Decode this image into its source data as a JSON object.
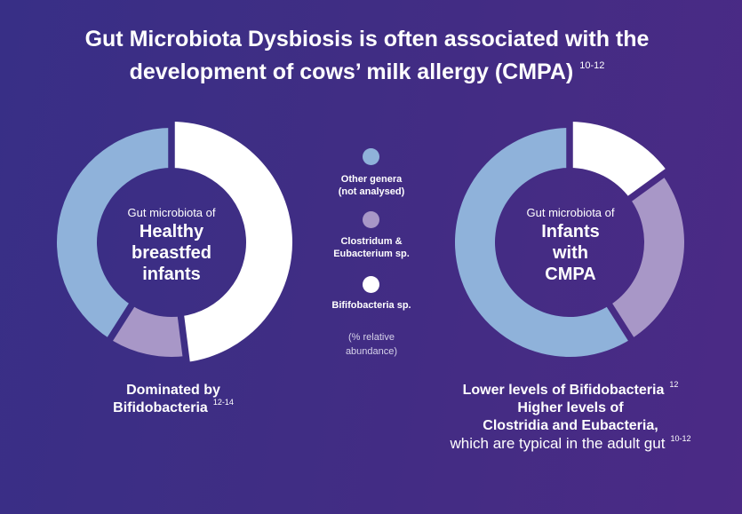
{
  "title": {
    "line1": "Gut Microbiota Dysbiosis is often associated with the",
    "line2": "development of cows’ milk allergy (CMPA)",
    "line2_ref": "10-12"
  },
  "donut_left": {
    "label_small": "Gut microbiota of",
    "label_lines": [
      "Healthy",
      "breastfed",
      "infants"
    ]
  },
  "donut_right": {
    "label_small": "Gut microbiota of",
    "label_lines": [
      "Infants",
      "with",
      "CMPA"
    ]
  },
  "legend": {
    "items": [
      {
        "lines": [
          "Other genera",
          "(not analysed)"
        ],
        "color": "#8fb2da"
      },
      {
        "lines": [
          "Clostridum &",
          "Eubacterium sp."
        ],
        "color": "#a897c7"
      },
      {
        "lines": [
          "Bififobacteria sp."
        ],
        "color": "#ffffff"
      }
    ],
    "note_lines": [
      "(% relative",
      "abundance)"
    ]
  },
  "caption_left": {
    "line1": "Dominated by",
    "line2": "Bifidobacteria",
    "line2_ref": "12-14"
  },
  "caption_right": {
    "line1": "Lower levels of Bifidobacteria",
    "line1_ref": "12",
    "line2": "Higher levels of",
    "line3": "Clostridia and Eubacteria,",
    "line4": "which are typical in the adult gut",
    "line4_ref": "10-12"
  },
  "colors": {
    "background_start": "#382f86",
    "background_end": "#4b2a85",
    "text": "#ffffff",
    "bifidobacteria": "#ffffff",
    "clostridium_eubacterium": "#a897c7",
    "other_genera": "#8fb2da"
  },
  "chart_data": [
    {
      "type": "pie",
      "variant": "donut",
      "title": "Gut microbiota of Healthy breastfed infants",
      "categories": [
        "Bififobacteria sp.",
        "Clostridum & Eubacterium sp.",
        "Other genera (not analysed)"
      ],
      "values": [
        48,
        11,
        41
      ],
      "unit": "% relative abundance",
      "colors": [
        "#ffffff",
        "#a897c7",
        "#8fb2da"
      ],
      "legend_position": "center, between the two donuts",
      "annotation": "Dominated by Bifidobacteria 12-14"
    },
    {
      "type": "pie",
      "variant": "donut",
      "title": "Gut microbiota of Infants with CMPA",
      "categories": [
        "Bififobacteria sp.",
        "Clostridum & Eubacterium sp.",
        "Other genera (not analysed)"
      ],
      "values": [
        15,
        26,
        59
      ],
      "unit": "% relative abundance",
      "colors": [
        "#ffffff",
        "#a897c7",
        "#8fb2da"
      ],
      "legend_position": "center, between the two donuts",
      "annotation": "Lower levels of Bifidobacteria 12 / Higher levels of Clostridia and Eubacteria, which are typical in the adult gut 10-12"
    }
  ]
}
